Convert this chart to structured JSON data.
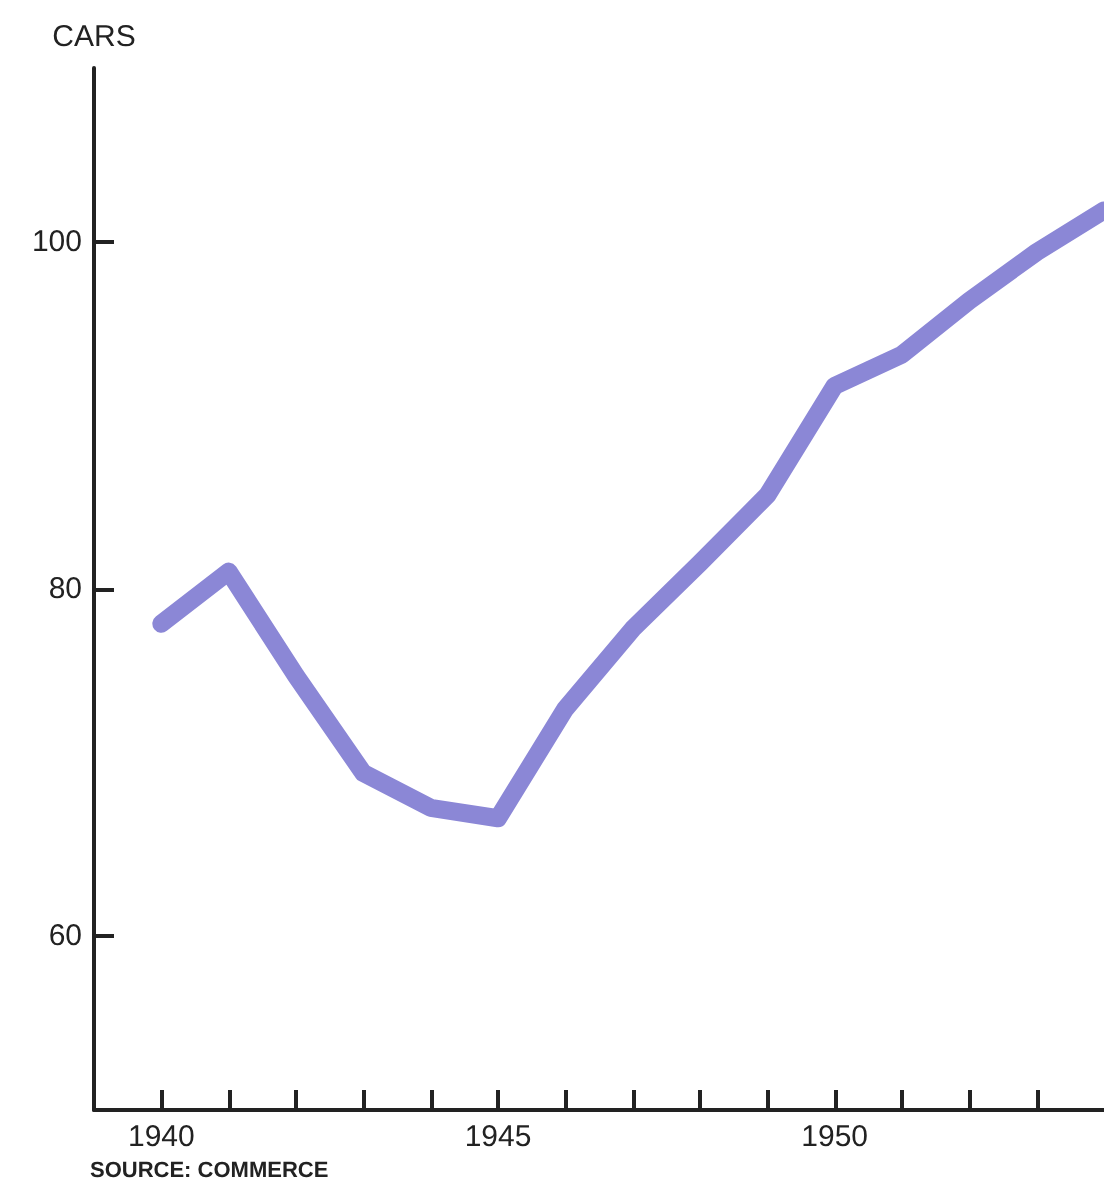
{
  "chart_data": {
    "type": "line",
    "ylabel": "CARS",
    "annotations": [
      "SOURCE: COMMERCE"
    ],
    "x": [
      1940,
      1941,
      1942,
      1943,
      1944,
      1945,
      1946,
      1947,
      1948,
      1949,
      1950,
      1951,
      1952,
      1953,
      1954
    ],
    "series": [
      {
        "color": "#8b87d6",
        "values": [
          78,
          81,
          75,
          69.4,
          67.4,
          66.8,
          73.1,
          77.7,
          81.5,
          85.4,
          91.7,
          93.5,
          96.6,
          99.4,
          101.8
        ]
      }
    ],
    "xlim": [
      1939,
      1954
    ],
    "ylim": [
      50,
      110
    ],
    "xticks": [
      1940,
      {
        "value": 1941,
        "label": null
      },
      {
        "value": 1942,
        "label": null
      },
      {
        "value": 1943,
        "label": null
      },
      {
        "value": 1944,
        "label": null
      },
      1945,
      {
        "value": 1946,
        "label": null
      },
      {
        "value": 1947,
        "label": null
      },
      {
        "value": 1948,
        "label": null
      },
      {
        "value": 1949,
        "label": null
      },
      1950,
      {
        "value": 1951,
        "label": null
      },
      {
        "value": 1952,
        "label": null
      },
      {
        "value": 1953,
        "label": null
      }
    ],
    "yticks": [
      60,
      80,
      100
    ],
    "grid": false,
    "line_style": "solid"
  }
}
